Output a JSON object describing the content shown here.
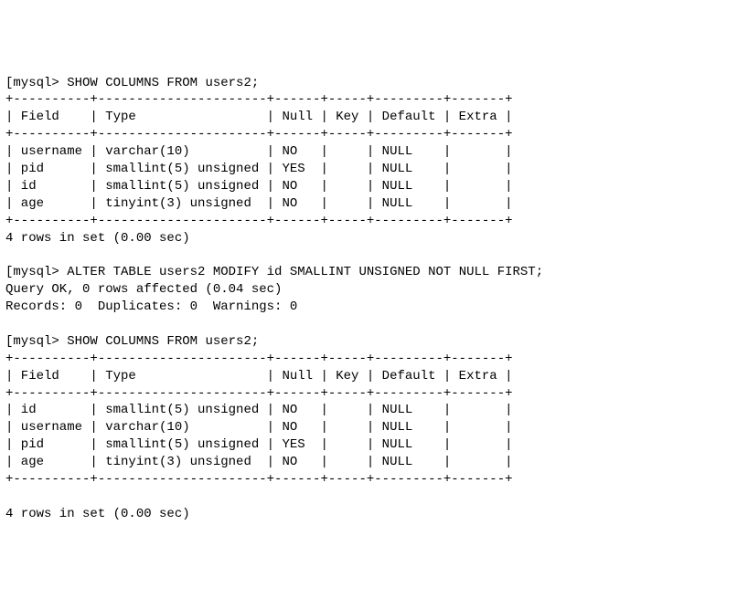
{
  "terminal": {
    "font_family": "Menlo, Consolas, Courier New, monospace",
    "font_size_pt": 10.5,
    "text_color": "#000000",
    "background_color": "#ffffff",
    "prompt_prefix": "[",
    "prompt": "mysql> ",
    "commands": {
      "show1": "SHOW COLUMNS FROM users2;",
      "alter": "ALTER TABLE users2 MODIFY id SMALLINT UNSIGNED NOT NULL FIRST;",
      "show2": "SHOW COLUMNS FROM users2;"
    },
    "table_border": {
      "sep": "+----------+----------------------+------+-----+---------+-------+",
      "header": "| Field    | Type                 | Null | Key | Default | Extra |"
    },
    "table1_rows": [
      "| username | varchar(10)          | NO   |     | NULL    |       |",
      "| pid      | smallint(5) unsigned | YES  |     | NULL    |       |",
      "| id       | smallint(5) unsigned | NO   |     | NULL    |       |",
      "| age      | tinyint(3) unsigned  | NO   |     | NULL    |       |"
    ],
    "table2_rows": [
      "| id       | smallint(5) unsigned | NO   |     | NULL    |       |",
      "| username | varchar(10)          | NO   |     | NULL    |       |",
      "| pid      | smallint(5) unsigned | YES  |     | NULL    |       |",
      "| age      | tinyint(3) unsigned  | NO   |     | NULL    |       |"
    ],
    "footer1": "4 rows in set (0.00 sec)",
    "alter_result1": "Query OK, 0 rows affected (0.04 sec)",
    "alter_result2": "Records: 0  Duplicates: 0  Warnings: 0",
    "footer2": "4 rows in set (0.00 sec)"
  }
}
